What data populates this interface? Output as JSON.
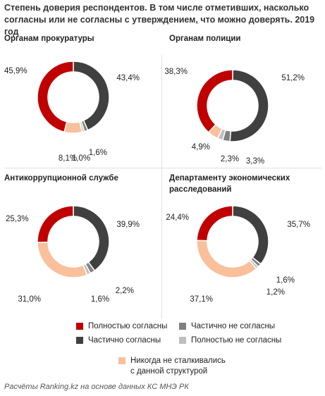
{
  "title": "Степень доверия респондентов. В том числе отметивших, насколько согласны или не согласны с утверждением, что можно доверять. 2019 год",
  "source": "Расчёты Ranking.kz на основе данных КС МНЭ РК",
  "colors": {
    "full_agree": "#c00000",
    "partial_agree": "#404040",
    "partial_disagree": "#808080",
    "full_disagree": "#bfbfbf",
    "never": "#f9c09b"
  },
  "legend": [
    {
      "label": "Полностью согласны",
      "color": "#c00000"
    },
    {
      "label": "Частично не согласны",
      "color": "#808080"
    },
    {
      "label": "Частично согласны",
      "color": "#404040"
    },
    {
      "label": "Полностью не согласны",
      "color": "#bfbfbf"
    },
    {
      "label": "Никогда не сталкивались\nс данной структурой",
      "color": "#f9c09b"
    }
  ],
  "chart_data": [
    {
      "type": "pie",
      "title": "Органам прокуратуры",
      "categories": [
        "Полностью согласны",
        "Частично согласны",
        "Частично не согласны",
        "Полностью не согласны",
        "Никогда не сталкивались с данной структурой"
      ],
      "values": [
        45.9,
        43.4,
        1.6,
        1.0,
        8.1
      ],
      "labels": [
        "45,9%",
        "43,4%",
        "1,6%",
        "1,0%",
        "8,1%"
      ]
    },
    {
      "type": "pie",
      "title": "Органам полиции",
      "categories": [
        "Полностью согласны",
        "Частично согласны",
        "Частично не согласны",
        "Полностью не согласны",
        "Никогда не сталкивались с данной структурой"
      ],
      "values": [
        38.3,
        51.2,
        3.3,
        2.3,
        4.9
      ],
      "labels": [
        "38,3%",
        "51,2%",
        "3,3%",
        "2,3%",
        "4,9%"
      ]
    },
    {
      "type": "pie",
      "title": "Антикоррупционной службе",
      "categories": [
        "Полностью согласны",
        "Частично согласны",
        "Частично не согласны",
        "Полностью не согласны",
        "Никогда не сталкивались с данной структурой"
      ],
      "values": [
        25.3,
        39.9,
        2.2,
        1.6,
        31.0
      ],
      "labels": [
        "25,3%",
        "39,9%",
        "2,2%",
        "1,6%",
        "31,0%"
      ]
    },
    {
      "type": "pie",
      "title": "Департаменту экономических расследований",
      "categories": [
        "Полностью согласны",
        "Частично согласны",
        "Частично не согласны",
        "Полностью не согласны",
        "Никогда не сталкивались с данной структурой"
      ],
      "values": [
        24.4,
        35.7,
        1.6,
        1.2,
        37.1
      ],
      "labels": [
        "24,4%",
        "35,7%",
        "1,6%",
        "1,2%",
        "37,1%"
      ]
    }
  ]
}
